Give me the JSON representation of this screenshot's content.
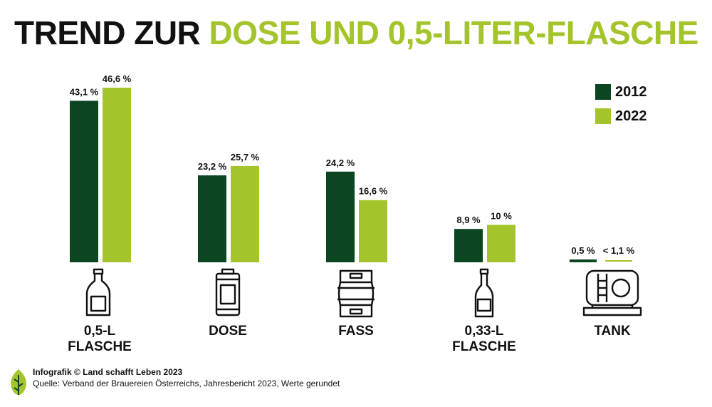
{
  "title": {
    "part1": "TREND ZUR ",
    "part2": "DOSE UND 0,5-LITER-FLASCHE"
  },
  "colors": {
    "dark": "#0b4522",
    "light": "#a3c52b",
    "text": "#111111"
  },
  "legend": [
    {
      "label": "2012",
      "color": "#0b4522"
    },
    {
      "label": "2022",
      "color": "#a3c52b"
    }
  ],
  "chart_data": {
    "type": "bar",
    "categories": [
      "0,5-L FLASCHE",
      "DOSE",
      "FASS",
      "0,33-L FLASCHE",
      "TANK"
    ],
    "series": [
      {
        "name": "2012",
        "values": [
          43.1,
          23.2,
          24.2,
          8.9,
          0.5
        ],
        "labels": [
          "43,1 %",
          "23,2 %",
          "24,2 %",
          "8,9 %",
          "0,5 %"
        ]
      },
      {
        "name": "2022",
        "values": [
          46.6,
          25.7,
          16.6,
          10,
          1.1
        ],
        "labels": [
          "46,6 %",
          "25,7 %",
          "16,6 %",
          "10 %",
          "< 1,1 %"
        ]
      }
    ],
    "title": "TREND ZUR DOSE UND 0,5-LITER-FLASCHE",
    "xlabel": "",
    "ylabel": "",
    "ylim": [
      0,
      50
    ],
    "grid": false,
    "legend_position": "top-right"
  },
  "categories": [
    {
      "line1": "0,5-L",
      "line2": "FLASCHE",
      "icon": "bottle-icon"
    },
    {
      "line1": "DOSE",
      "line2": "",
      "icon": "can-icon"
    },
    {
      "line1": "FASS",
      "line2": "",
      "icon": "keg-icon"
    },
    {
      "line1": "0,33-L",
      "line2": "FLASCHE",
      "icon": "small-bottle-icon"
    },
    {
      "line1": "TANK",
      "line2": "",
      "icon": "tank-icon"
    }
  ],
  "footer": {
    "credit": "Infografik © Land schafft Leben 2023",
    "source": "Quelle: Verband der Brauereien Österreichs, Jahresbericht 2023, Werte gerundet",
    "logo_icon": "leaf-logo-icon"
  }
}
